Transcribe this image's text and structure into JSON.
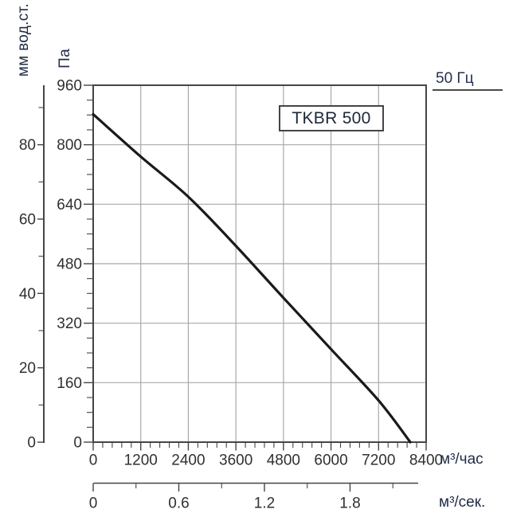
{
  "chart_data": {
    "type": "line",
    "title": "TKBR 500",
    "annotation": "50 Гц",
    "grid": true,
    "legend": "none",
    "x_axis": {
      "label": "м³/час",
      "min": 0,
      "max": 8400,
      "major_ticks": [
        0,
        1200,
        2400,
        3600,
        4800,
        6000,
        7200,
        8400
      ],
      "minor_step": 240
    },
    "y_axis": {
      "label": "Па",
      "min": 0,
      "max": 960,
      "major_ticks": [
        0,
        160,
        320,
        480,
        640,
        800,
        960
      ],
      "minor_step": 40
    },
    "y_axis_secondary": {
      "label": "мм вод.ст.",
      "min": 0,
      "max": 96,
      "major_ticks": [
        0,
        20,
        40,
        60,
        80
      ],
      "minor_ticks": [
        10,
        30,
        50,
        70,
        90
      ],
      "pa_per_mm": 10
    },
    "x_axis_secondary": {
      "label": "м³/сек.",
      "major_ticks": [
        0,
        0.6,
        1.2,
        1.8
      ],
      "tick_labels": [
        "0",
        "0.6",
        "1.2",
        "1.8"
      ],
      "minor_ticks": [
        0.3,
        0.9,
        1.5,
        2.1
      ],
      "m3h_per_m3s": 3600
    },
    "series": [
      {
        "name": "TKBR 500 @ 50 Гц",
        "points": [
          [
            0,
            882
          ],
          [
            1200,
            768
          ],
          [
            2400,
            660
          ],
          [
            3600,
            528
          ],
          [
            4800,
            388
          ],
          [
            6000,
            250
          ],
          [
            7200,
            112
          ],
          [
            8000,
            0
          ]
        ]
      }
    ],
    "colors": {
      "curve": "#1a1a1a",
      "axis": "#454545",
      "grid": "#a8a8a8",
      "tick_text": "#303030",
      "unit_text": "#1f2b45"
    }
  }
}
